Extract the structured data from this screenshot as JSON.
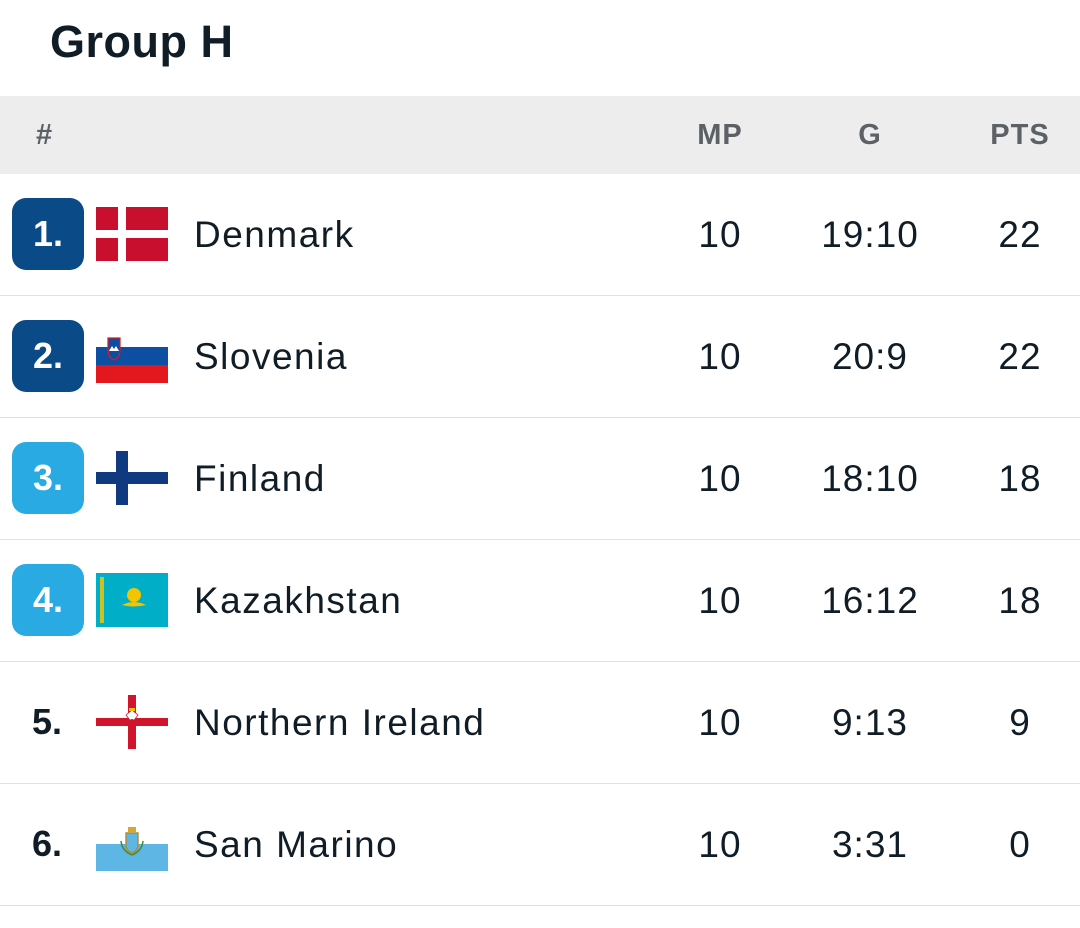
{
  "title": "Group H",
  "columns": {
    "rank": "#",
    "mp": "MP",
    "g": "G",
    "pts": "PTS"
  },
  "colors": {
    "qualified_badge": "#0a4a87",
    "playoff_badge": "#29aae3",
    "header_bg": "#ededed"
  },
  "rows": [
    {
      "rank": "1.",
      "team": "Denmark",
      "flag_icon": "denmark-flag-icon",
      "mp": "10",
      "g": "19:10",
      "pts": "22",
      "badge": "qualified"
    },
    {
      "rank": "2.",
      "team": "Slovenia",
      "flag_icon": "slovenia-flag-icon",
      "mp": "10",
      "g": "20:9",
      "pts": "22",
      "badge": "qualified"
    },
    {
      "rank": "3.",
      "team": "Finland",
      "flag_icon": "finland-flag-icon",
      "mp": "10",
      "g": "18:10",
      "pts": "18",
      "badge": "playoff"
    },
    {
      "rank": "4.",
      "team": "Kazakhstan",
      "flag_icon": "kazakhstan-flag-icon",
      "mp": "10",
      "g": "16:12",
      "pts": "18",
      "badge": "playoff"
    },
    {
      "rank": "5.",
      "team": "Northern Ireland",
      "flag_icon": "northern-ireland-flag-icon",
      "mp": "10",
      "g": "9:13",
      "pts": "9",
      "badge": "none"
    },
    {
      "rank": "6.",
      "team": "San Marino",
      "flag_icon": "san-marino-flag-icon",
      "mp": "10",
      "g": "3:31",
      "pts": "0",
      "badge": "none"
    }
  ]
}
